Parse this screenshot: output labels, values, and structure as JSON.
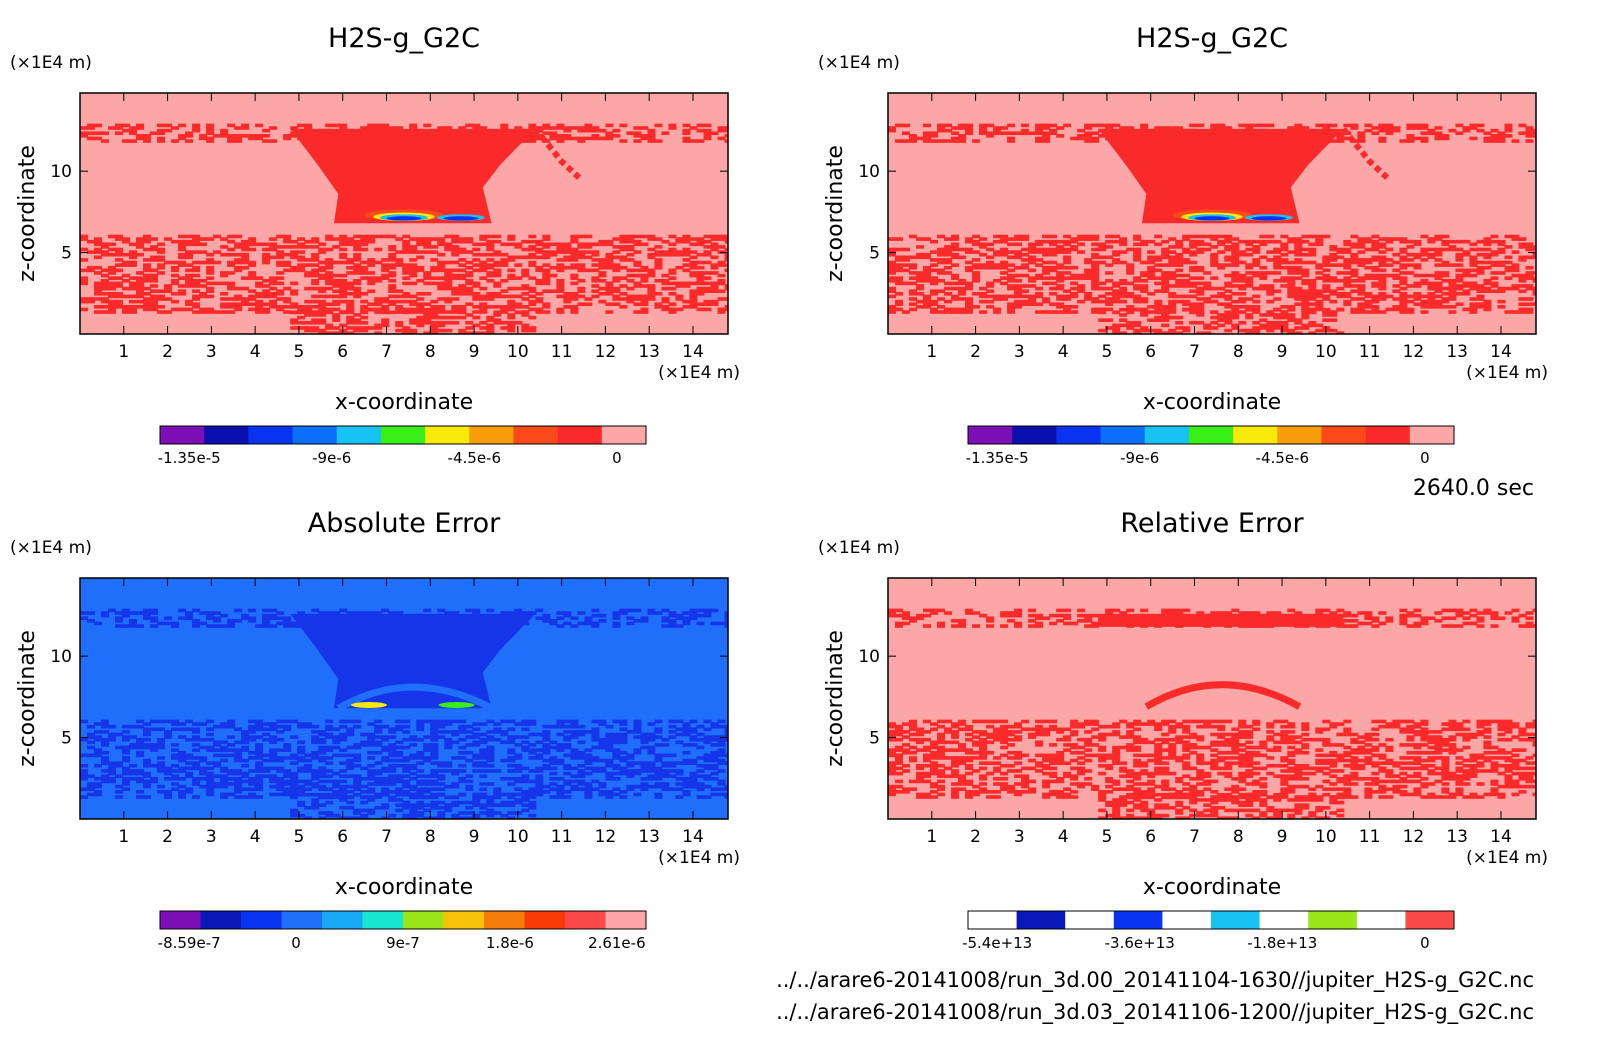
{
  "time_label": "2640.0 sec",
  "file_paths": [
    "../../arare6-20141008/run_3d.00_20141104-1630//jupiter_H2S-g_G2C.nc",
    "../../arare6-20141008/run_3d.03_20141106-1200//jupiter_H2S-g_G2C.nc"
  ],
  "colors": {
    "background_pink": "#fba7a7",
    "red": "#fb2a2a",
    "error_blue": "#1f6ffb",
    "dark_blue": "#1735e8"
  },
  "chart_data": [
    {
      "type": "heatmap",
      "title": "H2S-g_G2C",
      "xlabel": "x-coordinate",
      "ylabel": "z-coordinate",
      "x_unit": "(×1E4 m)",
      "y_unit": "(×1E4 m)",
      "xlim": [
        0,
        14.8
      ],
      "ylim": [
        0,
        14.8
      ],
      "x_ticks": [
        "1",
        "2",
        "3",
        "4",
        "5",
        "6",
        "7",
        "8",
        "9",
        "10",
        "11",
        "12",
        "13",
        "14"
      ],
      "y_ticks": [
        "5",
        "10"
      ],
      "colorbar": {
        "levels": 10,
        "colors": [
          "#7d0fb6",
          "#0a0fae",
          "#0a33f0",
          "#0a70fb",
          "#18c3f4",
          "#38ef18",
          "#f7ea0a",
          "#f79d0a",
          "#fb4a1a",
          "#fb2a2a",
          "#fba7a7"
        ],
        "tick_labels": [
          "-1.35e-5",
          "-9e-6",
          "-4.5e-6",
          "0"
        ]
      },
      "colormap_field": "h2s"
    },
    {
      "type": "heatmap",
      "title": "H2S-g_G2C",
      "xlabel": "x-coordinate",
      "ylabel": "z-coordinate",
      "x_unit": "(×1E4 m)",
      "y_unit": "(×1E4 m)",
      "xlim": [
        0,
        14.8
      ],
      "ylim": [
        0,
        14.8
      ],
      "x_ticks": [
        "1",
        "2",
        "3",
        "4",
        "5",
        "6",
        "7",
        "8",
        "9",
        "10",
        "11",
        "12",
        "13",
        "14"
      ],
      "y_ticks": [
        "5",
        "10"
      ],
      "colorbar": {
        "levels": 10,
        "colors": [
          "#7d0fb6",
          "#0a0fae",
          "#0a33f0",
          "#0a70fb",
          "#18c3f4",
          "#38ef18",
          "#f7ea0a",
          "#f79d0a",
          "#fb4a1a",
          "#fb2a2a",
          "#fba7a7"
        ],
        "tick_labels": [
          "-1.35e-5",
          "-9e-6",
          "-4.5e-6",
          "0"
        ]
      },
      "colormap_field": "h2s"
    },
    {
      "type": "heatmap",
      "title": "Absolute Error",
      "xlabel": "x-coordinate",
      "ylabel": "z-coordinate",
      "x_unit": "(×1E4 m)",
      "y_unit": "(×1E4 m)",
      "xlim": [
        0,
        14.8
      ],
      "ylim": [
        0,
        14.8
      ],
      "x_ticks": [
        "1",
        "2",
        "3",
        "4",
        "5",
        "6",
        "7",
        "8",
        "9",
        "10",
        "11",
        "12",
        "13",
        "14"
      ],
      "y_ticks": [
        "5",
        "10"
      ],
      "colorbar": {
        "levels": 11,
        "colors": [
          "#7d0fb6",
          "#0a18b8",
          "#0a33f0",
          "#1f6ffb",
          "#18a9f4",
          "#18e6d0",
          "#9be61a",
          "#f7c20a",
          "#f77d0a",
          "#fb3a0a",
          "#fb4a4a",
          "#fba7a7"
        ],
        "tick_labels": [
          "-8.59e-7",
          "0",
          "9e-7",
          "1.8e-6",
          "2.61e-6"
        ]
      },
      "colormap_field": "abs"
    },
    {
      "type": "heatmap",
      "title": "Relative Error",
      "xlabel": "x-coordinate",
      "ylabel": "z-coordinate",
      "x_unit": "(×1E4 m)",
      "y_unit": "(×1E4 m)",
      "xlim": [
        0,
        14.8
      ],
      "ylim": [
        0,
        14.8
      ],
      "x_ticks": [
        "1",
        "2",
        "3",
        "4",
        "5",
        "6",
        "7",
        "8",
        "9",
        "10",
        "11",
        "12",
        "13",
        "14"
      ],
      "y_ticks": [
        "5",
        "10"
      ],
      "colorbar": {
        "levels": 10,
        "colors": [
          "#ffffff",
          "#0a18b8",
          "#ffffff",
          "#0a33f0",
          "#ffffff",
          "#18c3f4",
          "#ffffff",
          "#9be61a",
          "#ffffff",
          "#fb4a4a"
        ],
        "tick_labels": [
          "-5.4e+13",
          "-3.6e+13",
          "-1.8e+13",
          "0"
        ]
      },
      "colormap_field": "rel"
    }
  ]
}
